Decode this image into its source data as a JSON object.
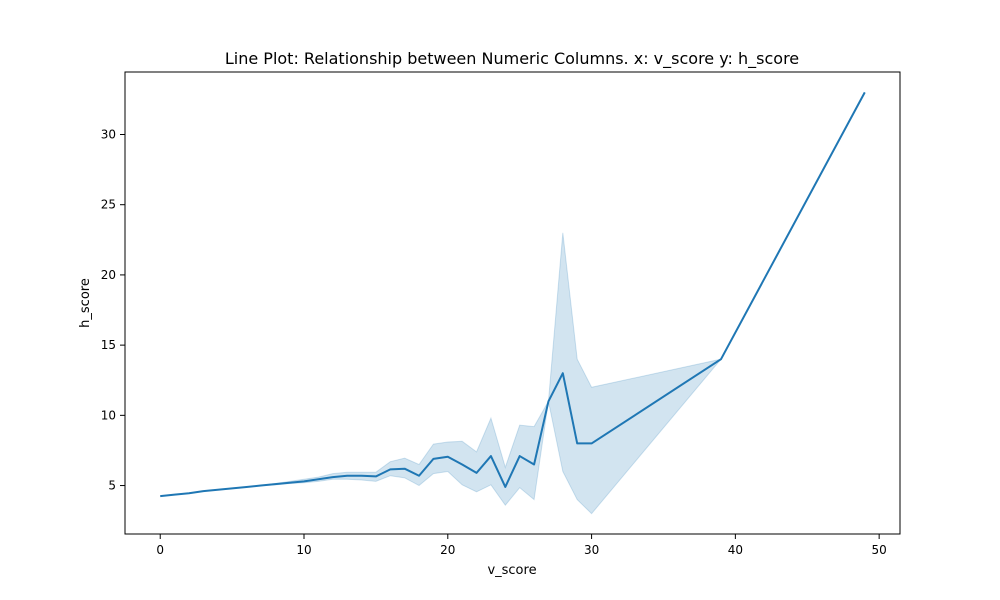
{
  "chart_data": {
    "type": "line",
    "title": "Line Plot: Relationship between Numeric Columns. x: v_score y: h_score",
    "xlabel": "v_score",
    "ylabel": "h_score",
    "xlim": [
      -2.45,
      51.45
    ],
    "ylim": [
      1.55,
      34.45
    ],
    "xticks": [
      0,
      10,
      20,
      30,
      40,
      50
    ],
    "yticks": [
      5,
      10,
      15,
      20,
      25,
      30
    ],
    "grid": false,
    "legend": "none",
    "series": [
      {
        "color": "#1f77b4",
        "band_color": "#1f77b4",
        "band_opacity": 0.2,
        "points": [
          {
            "x": 0,
            "y": 4.25,
            "lo": 4.25,
            "hi": 4.25
          },
          {
            "x": 1,
            "y": 4.35,
            "lo": 4.35,
            "hi": 4.35
          },
          {
            "x": 2,
            "y": 4.45,
            "lo": 4.45,
            "hi": 4.45
          },
          {
            "x": 3,
            "y": 4.6,
            "lo": 4.6,
            "hi": 4.6
          },
          {
            "x": 4,
            "y": 4.7,
            "lo": 4.7,
            "hi": 4.7
          },
          {
            "x": 5,
            "y": 4.8,
            "lo": 4.8,
            "hi": 4.8
          },
          {
            "x": 6,
            "y": 4.9,
            "lo": 4.9,
            "hi": 4.9
          },
          {
            "x": 7,
            "y": 5.0,
            "lo": 5.0,
            "hi": 5.0
          },
          {
            "x": 8,
            "y": 5.1,
            "lo": 5.05,
            "hi": 5.15
          },
          {
            "x": 9,
            "y": 5.2,
            "lo": 5.15,
            "hi": 5.3
          },
          {
            "x": 10,
            "y": 5.3,
            "lo": 5.2,
            "hi": 5.45
          },
          {
            "x": 11,
            "y": 5.45,
            "lo": 5.3,
            "hi": 5.6
          },
          {
            "x": 12,
            "y": 5.6,
            "lo": 5.45,
            "hi": 5.85
          },
          {
            "x": 13,
            "y": 5.7,
            "lo": 5.45,
            "hi": 5.95
          },
          {
            "x": 14,
            "y": 5.7,
            "lo": 5.4,
            "hi": 5.95
          },
          {
            "x": 15,
            "y": 5.65,
            "lo": 5.3,
            "hi": 5.95
          },
          {
            "x": 16,
            "y": 6.15,
            "lo": 5.7,
            "hi": 6.7
          },
          {
            "x": 17,
            "y": 6.2,
            "lo": 5.55,
            "hi": 6.95
          },
          {
            "x": 18,
            "y": 5.7,
            "lo": 5.0,
            "hi": 6.5
          },
          {
            "x": 19,
            "y": 6.9,
            "lo": 5.85,
            "hi": 7.95
          },
          {
            "x": 20,
            "y": 7.05,
            "lo": 6.0,
            "hi": 8.1
          },
          {
            "x": 21,
            "y": 6.5,
            "lo": 5.05,
            "hi": 8.15
          },
          {
            "x": 22,
            "y": 5.9,
            "lo": 4.55,
            "hi": 7.4
          },
          {
            "x": 23,
            "y": 7.1,
            "lo": 5.05,
            "hi": 9.8
          },
          {
            "x": 24,
            "y": 4.9,
            "lo": 3.6,
            "hi": 6.3
          },
          {
            "x": 25,
            "y": 7.1,
            "lo": 4.85,
            "hi": 9.3
          },
          {
            "x": 26,
            "y": 6.5,
            "lo": 4.0,
            "hi": 9.2
          },
          {
            "x": 27,
            "y": 11.0,
            "lo": 11.0,
            "hi": 11.0
          },
          {
            "x": 28,
            "y": 13.0,
            "lo": 6.0,
            "hi": 23.0
          },
          {
            "x": 29,
            "y": 8.0,
            "lo": 4.0,
            "hi": 14.0
          },
          {
            "x": 30,
            "y": 8.0,
            "lo": 3.0,
            "hi": 12.0
          },
          {
            "x": 39,
            "y": 14.0,
            "lo": 14.0,
            "hi": 14.0
          },
          {
            "x": 49,
            "y": 33.0,
            "lo": 33.0,
            "hi": 33.0
          }
        ]
      }
    ]
  }
}
